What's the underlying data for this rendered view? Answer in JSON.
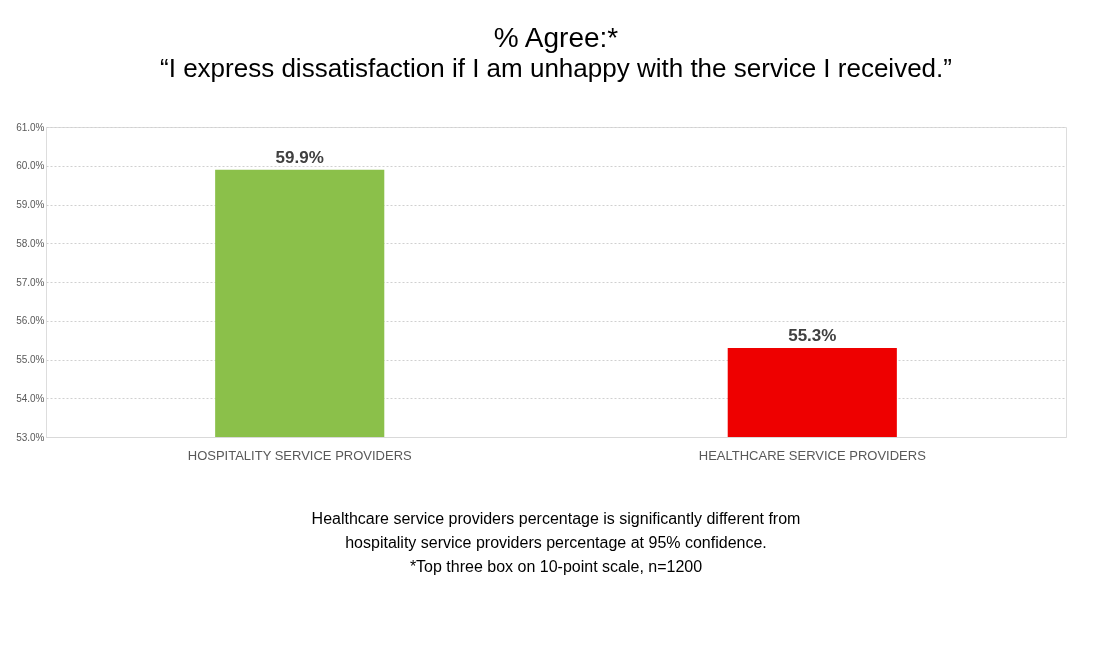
{
  "chart_data": {
    "type": "bar",
    "title": "% Agree:*",
    "subtitle": "“I express dissatisfaction if I am unhappy with the service I received.”",
    "categories": [
      "HOSPITALITY SERVICE PROVIDERS",
      "HEALTHCARE SERVICE PROVIDERS"
    ],
    "values": [
      59.9,
      55.3
    ],
    "colors": [
      "#8bc04a",
      "#ee0000"
    ],
    "value_labels": [
      "59.9%",
      "55.3%"
    ],
    "ylim": [
      53,
      61
    ],
    "yticks": [
      {
        "value": 53,
        "label": "53.0%"
      },
      {
        "value": 54,
        "label": "54.0%"
      },
      {
        "value": 55,
        "label": "55.0%"
      },
      {
        "value": 56,
        "label": "56.0%"
      },
      {
        "value": 57,
        "label": "57.0%"
      },
      {
        "value": 58,
        "label": "58.0%"
      },
      {
        "value": 59,
        "label": "59.0%"
      },
      {
        "value": 60,
        "label": "60.0%"
      },
      {
        "value": 61,
        "label": "61.0%"
      }
    ],
    "grid": "y",
    "legend": false,
    "annotations": [
      "Healthcare service providers percentage is significantly different from",
      "hospitality service providers percentage at 95% confidence.",
      "*Top three box on 10-point scale, n=1200"
    ]
  }
}
